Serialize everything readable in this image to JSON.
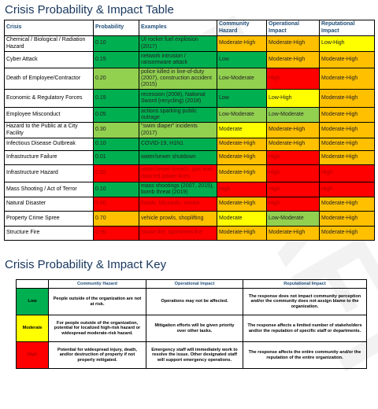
{
  "header": {
    "title": "Crisis Probability & Impact Table"
  },
  "table": {
    "columns": [
      "Crisis",
      "Probability",
      "Examples",
      "Community Hazard",
      "Operational Impact",
      "Reputational Impact"
    ],
    "rows": [
      {
        "cells": [
          "Chemical / Biological / Radiation Hazard",
          "0.10",
          "UI rocket fuel explosion (2017)",
          "Moderate-High",
          "Moderate-High",
          "Low-High"
        ],
        "colors": [
          "#00b050",
          "#ffc000",
          "#ffc000",
          "#ffff00"
        ]
      },
      {
        "cells": [
          "Cyber Attack",
          "0.15",
          "network intrusion / ransomware attack",
          "Low",
          "Moderate-High",
          "Moderate-High"
        ],
        "colors": [
          "#00b050",
          "#00b050",
          "#ffc000",
          "#ffc000"
        ]
      },
      {
        "cells": [
          "Death of Employee/Contractor",
          "0.20",
          "police killed in line-of-duty (2007), construction accident (2015)",
          "Low-Moderate",
          "High",
          "Moderate-High"
        ],
        "colors": [
          "#92d050",
          "#92d050",
          "#ff0000",
          "#ffc000"
        ]
      },
      {
        "cells": [
          "Economic & Regulatory Forces",
          "0.15",
          "recession (2008), National Sword (recycling) (2018)",
          "Low",
          "Low-High",
          "Moderate-High"
        ],
        "colors": [
          "#00b050",
          "#00b050",
          "#ffff00",
          "#ffc000"
        ]
      },
      {
        "cells": [
          "Employee Misconduct",
          "0.05",
          "actions sparking public outrage",
          "Low-Moderate",
          "Low-Moderate",
          "Moderate-High"
        ],
        "colors": [
          "#00b050",
          "#92d050",
          "#92d050",
          "#ffc000"
        ]
      },
      {
        "cells": [
          "Hazard to the Public at a City Facility",
          "0.30",
          "\"swim diaper\" incidents (2017)",
          "Moderate",
          "Moderate-High",
          "Moderate-High"
        ],
        "colors": [
          "#92d050",
          "#ffff00",
          "#ffc000",
          "#ffc000"
        ]
      },
      {
        "cells": [
          "Infectious Disease Outbreak",
          "0.10",
          "COVID-19, H1N1",
          "Moderate-High",
          "Moderate-High",
          "Moderate-High"
        ],
        "colors": [
          "#00b050",
          "#ffc000",
          "#ffc000",
          "#ffc000"
        ]
      },
      {
        "cells": [
          "Infrastructure Failure",
          "0.01",
          "water/sewer shutdown",
          "Moderate-High",
          "High",
          "Moderate-High"
        ],
        "colors": [
          "#00b050",
          "#ffc000",
          "#ff0000",
          "#ffc000"
        ]
      },
      {
        "cells": [
          "Infrastructure Hazard",
          "0.85",
          "water/sewer breach, gas leak, downed power lines",
          "Moderate-High",
          "High",
          "High"
        ],
        "colors": [
          "#ff0000",
          "#ffc000",
          "#ff0000",
          "#ff0000"
        ]
      },
      {
        "cells": [
          "Mass Shooting / Act of Terror",
          "0.10",
          "mass shootings (2007, 2015), bomb threat (2019)",
          "High",
          "High",
          "High"
        ],
        "colors": [
          "#00b050",
          "#ff0000",
          "#ff0000",
          "#ff0000"
        ]
      },
      {
        "cells": [
          "Natural Disaster",
          "0.80",
          "floods, blizzards, smoke",
          "Moderate-High",
          "High",
          "Moderate-High"
        ],
        "colors": [
          "#ff0000",
          "#ffc000",
          "#ff0000",
          "#ffc000"
        ]
      },
      {
        "cells": [
          "Property Crime Spree",
          "0.70",
          "vehicle prowls, shoplifting",
          "Moderate",
          "Low-Moderate",
          "Moderate-High"
        ],
        "colors": [
          "#ffc000",
          "#ffff00",
          "#92d050",
          "#ffc000"
        ]
      },
      {
        "cells": [
          "Structure Fire",
          "0.90",
          "house fire, apartment fire",
          "Moderate-High",
          "Moderate-High",
          "Moderate-High"
        ],
        "colors": [
          "#ff0000",
          "#ffc000",
          "#ffc000",
          "#ffc000"
        ]
      }
    ]
  },
  "key": {
    "title": "Crisis Probability & Impact Key",
    "columns": [
      "Community Hazard",
      "Operational Impact",
      "Reputational Impact"
    ],
    "rows": [
      {
        "level": "Low",
        "color": "#00b050",
        "cells": [
          "People outside of the organization are not at risk.",
          "Operations may not be affected.",
          "The response does not impact community perception and/or the community does not assign blame to the organization."
        ]
      },
      {
        "level": "Moderate",
        "color": "#ffff00",
        "cells": [
          "For people outside of the organization, potential for localized high-risk hazard or widespread moderate-risk hazard.",
          "Mitigation efforts will be given priority over other tasks.",
          "The response affects a limited number of stakeholders and/or the reputation of specific staff or departments."
        ]
      },
      {
        "level": "High",
        "color": "#ff0000",
        "cells": [
          "Potential for widespread injury, death, and/or destruction of property if not properly mitigated.",
          "Emergency staff will immediately work to resolve the issue. Other designated staff will support emergency operations.",
          "The response affects the entire community and/or the reputation of the entire organization."
        ]
      }
    ]
  },
  "watermark": "DRAFT"
}
